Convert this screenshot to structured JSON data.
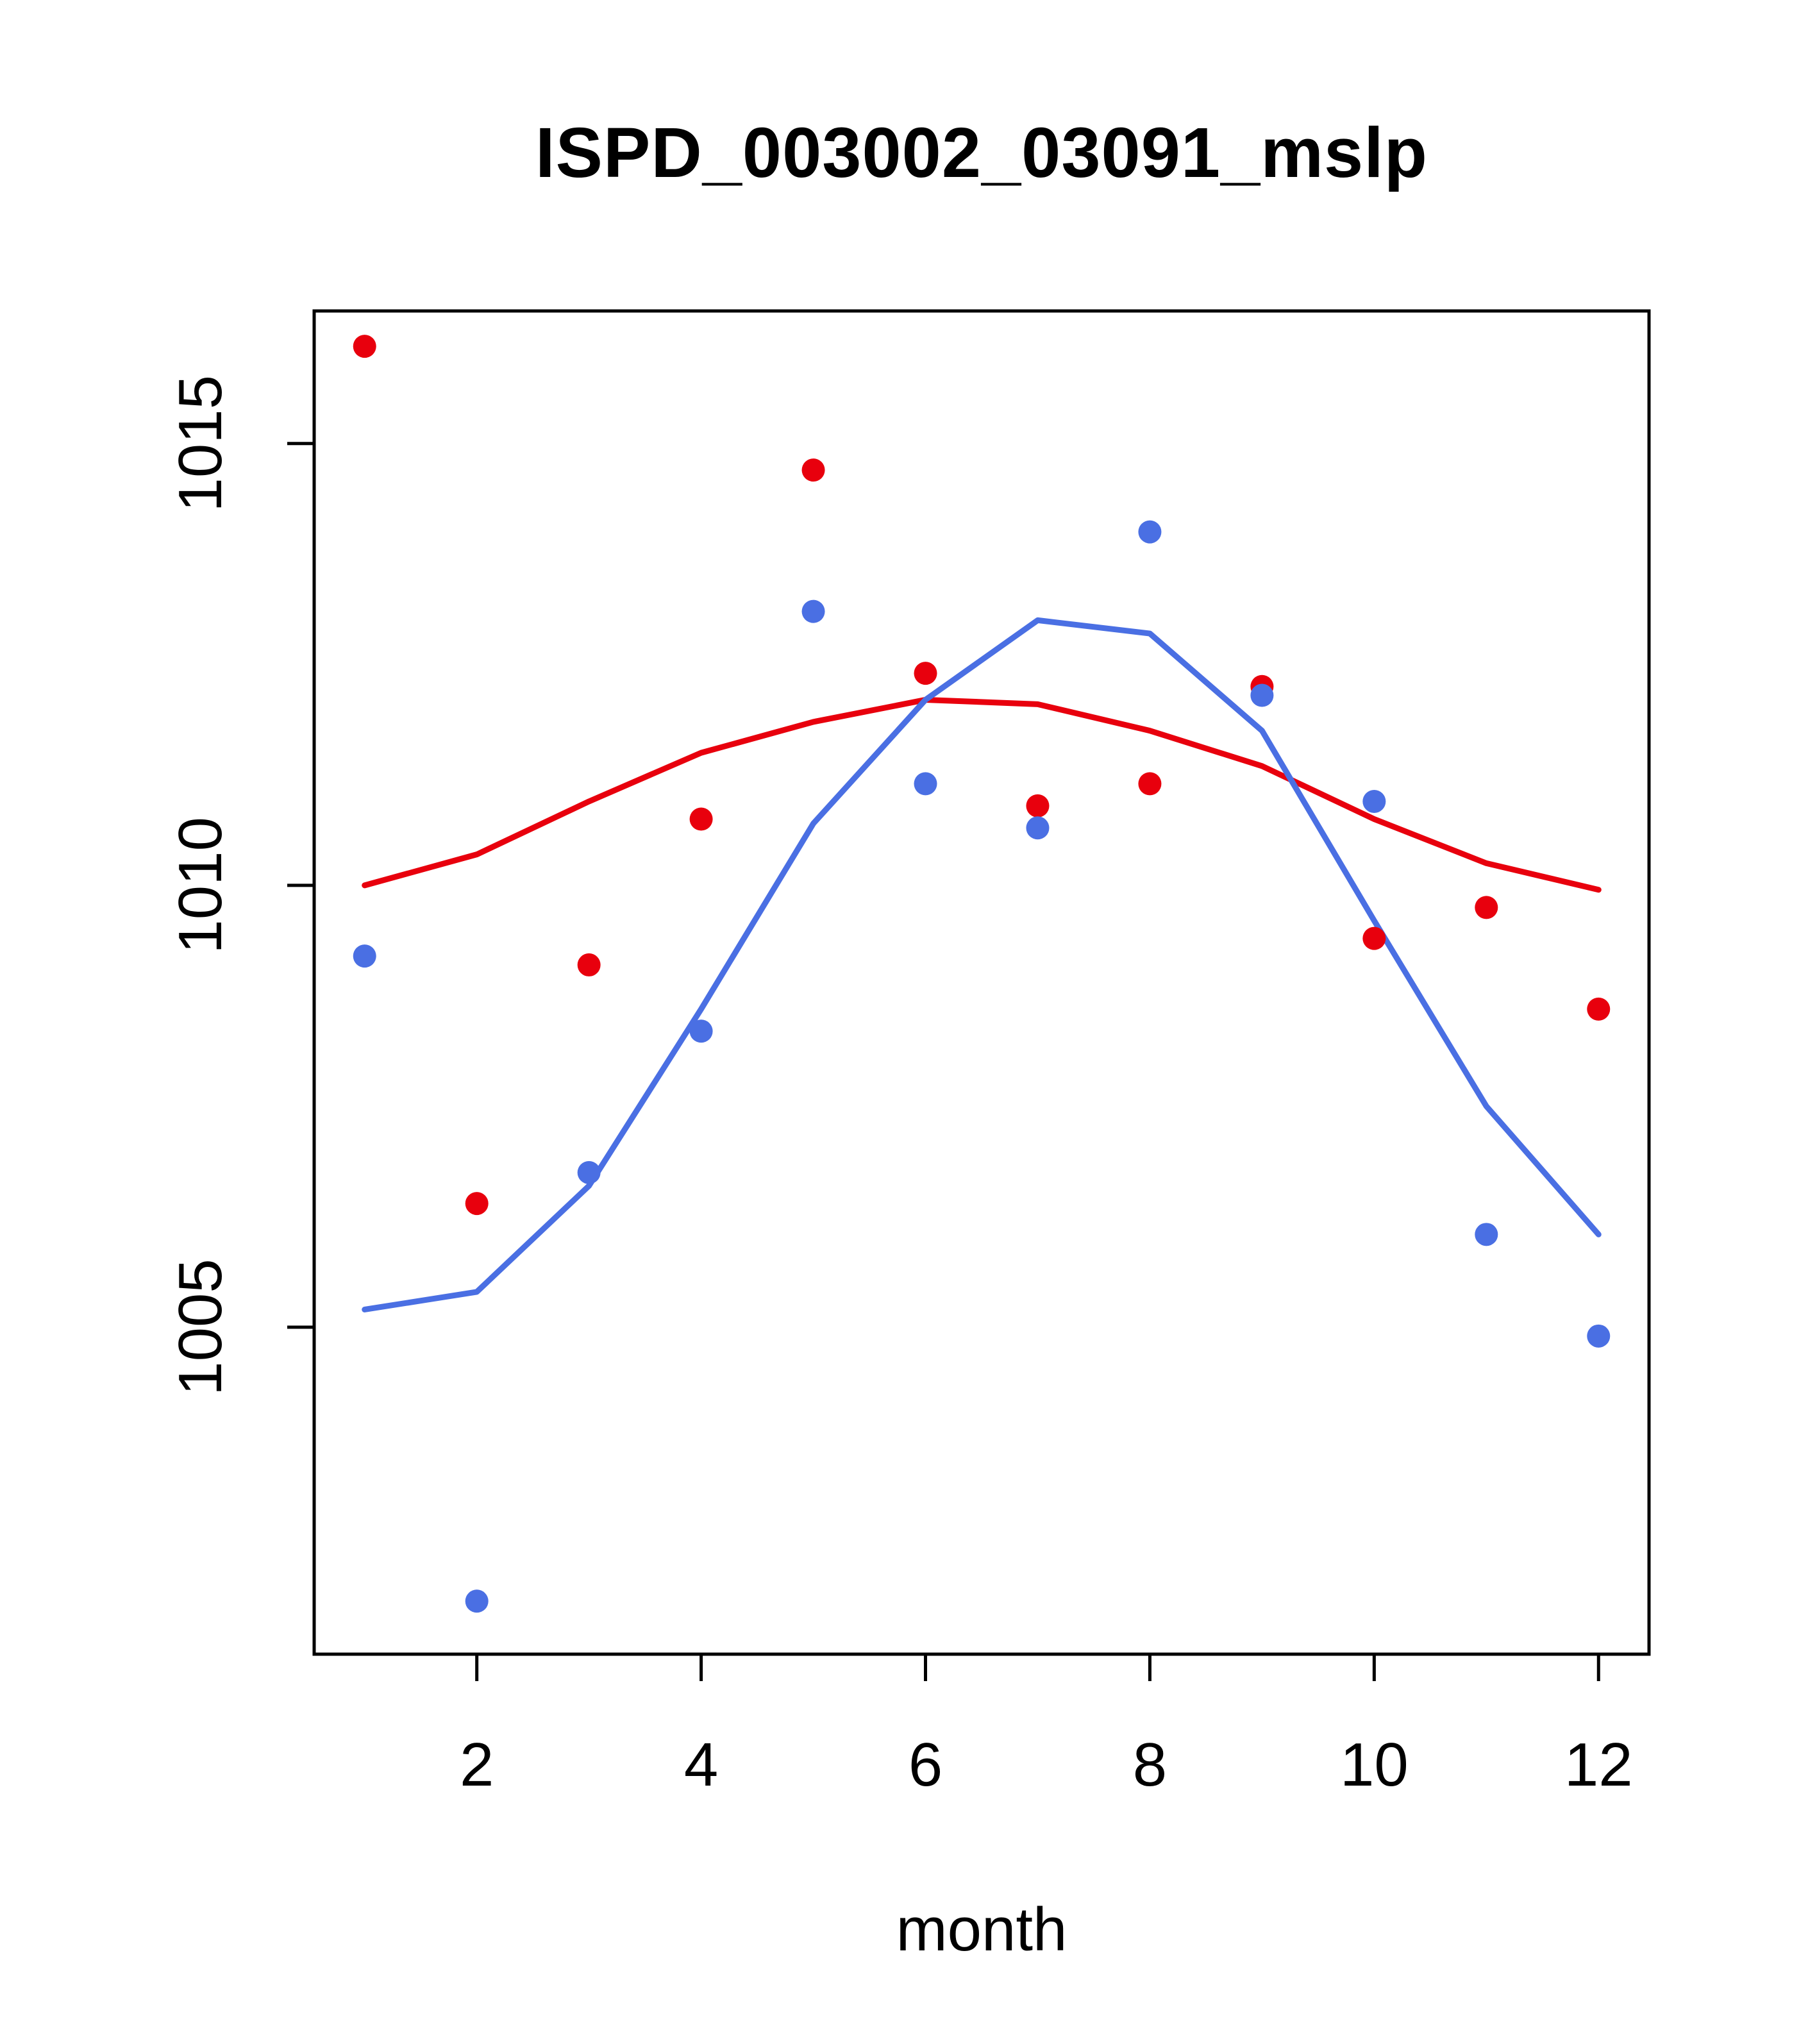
{
  "chart_data": {
    "type": "scatter",
    "title": "ISPD_003002_03091_mslp",
    "xlabel": "month",
    "ylabel": "",
    "xlim": [
      0.55,
      12.45
    ],
    "ylim": [
      1001.3,
      1016.5
    ],
    "x_ticks": [
      2,
      4,
      6,
      8,
      10,
      12
    ],
    "y_ticks": [
      1005,
      1010,
      1015
    ],
    "grid": false,
    "legend": "none",
    "x": [
      1,
      2,
      3,
      4,
      5,
      6,
      7,
      8,
      9,
      10,
      11,
      12
    ],
    "series": [
      {
        "name": "red-line",
        "style": "line",
        "color": "#e8000d",
        "values": [
          1010.0,
          1010.35,
          1010.95,
          1011.5,
          1011.85,
          1012.1,
          1012.05,
          1011.75,
          1011.35,
          1010.75,
          1010.25,
          1009.95
        ]
      },
      {
        "name": "blue-line",
        "style": "line",
        "color": "#4a6fe3",
        "values": [
          1005.2,
          1005.4,
          1006.6,
          1008.6,
          1010.7,
          1012.1,
          1013.0,
          1012.85,
          1011.75,
          1009.6,
          1007.5,
          1006.05
        ]
      },
      {
        "name": "red-points",
        "style": "points",
        "color": "#e8000d",
        "values": [
          1016.1,
          1006.4,
          1009.1,
          1010.75,
          1014.7,
          1012.4,
          1010.9,
          1011.15,
          1012.25,
          1009.4,
          1009.75,
          1008.6
        ]
      },
      {
        "name": "blue-points",
        "style": "points",
        "color": "#4a6fe3",
        "values": [
          1009.2,
          1001.9,
          1006.75,
          1008.35,
          1013.1,
          1011.15,
          1010.65,
          1014.0,
          1012.15,
          1010.95,
          1006.05,
          1004.9
        ]
      }
    ]
  }
}
